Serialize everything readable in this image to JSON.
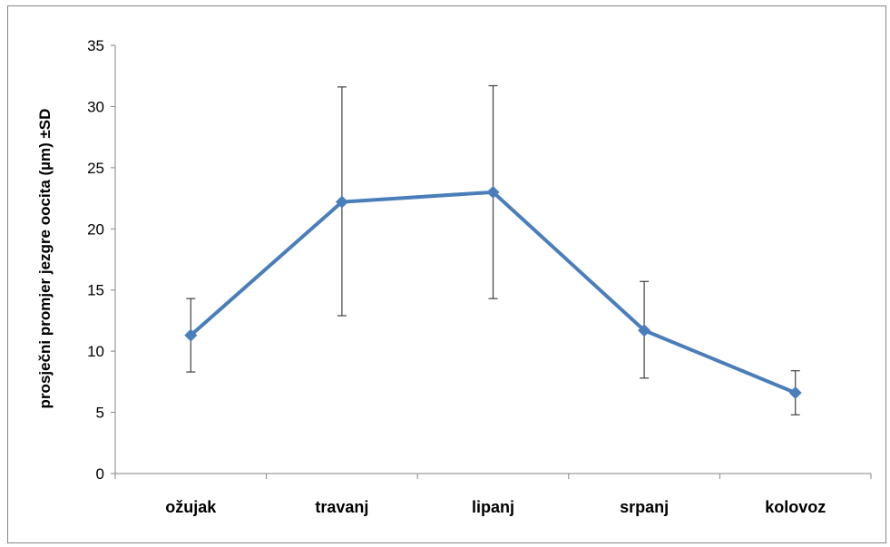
{
  "chart_data": {
    "type": "line",
    "title": "",
    "xlabel": "",
    "ylabel": "prosječni promjer jezgre oocita (µm) ±SD",
    "categories": [
      "ožujak",
      "travanj",
      "lipanj",
      "srpanj",
      "kolovoz"
    ],
    "series": [
      {
        "values": [
          11.3,
          22.2,
          23.0,
          11.7,
          6.6
        ],
        "error_low": [
          8.3,
          12.9,
          14.3,
          7.8,
          4.8
        ],
        "error_high": [
          14.3,
          31.6,
          31.7,
          15.7,
          8.4
        ],
        "color": "#4a7ebb"
      }
    ],
    "ylim": [
      0,
      35
    ],
    "yticks": [
      0,
      5,
      10,
      15,
      20,
      25,
      30,
      35
    ],
    "grid": false,
    "legend": "none",
    "error_bar_color": "#404040",
    "axis_color": "#868686"
  }
}
